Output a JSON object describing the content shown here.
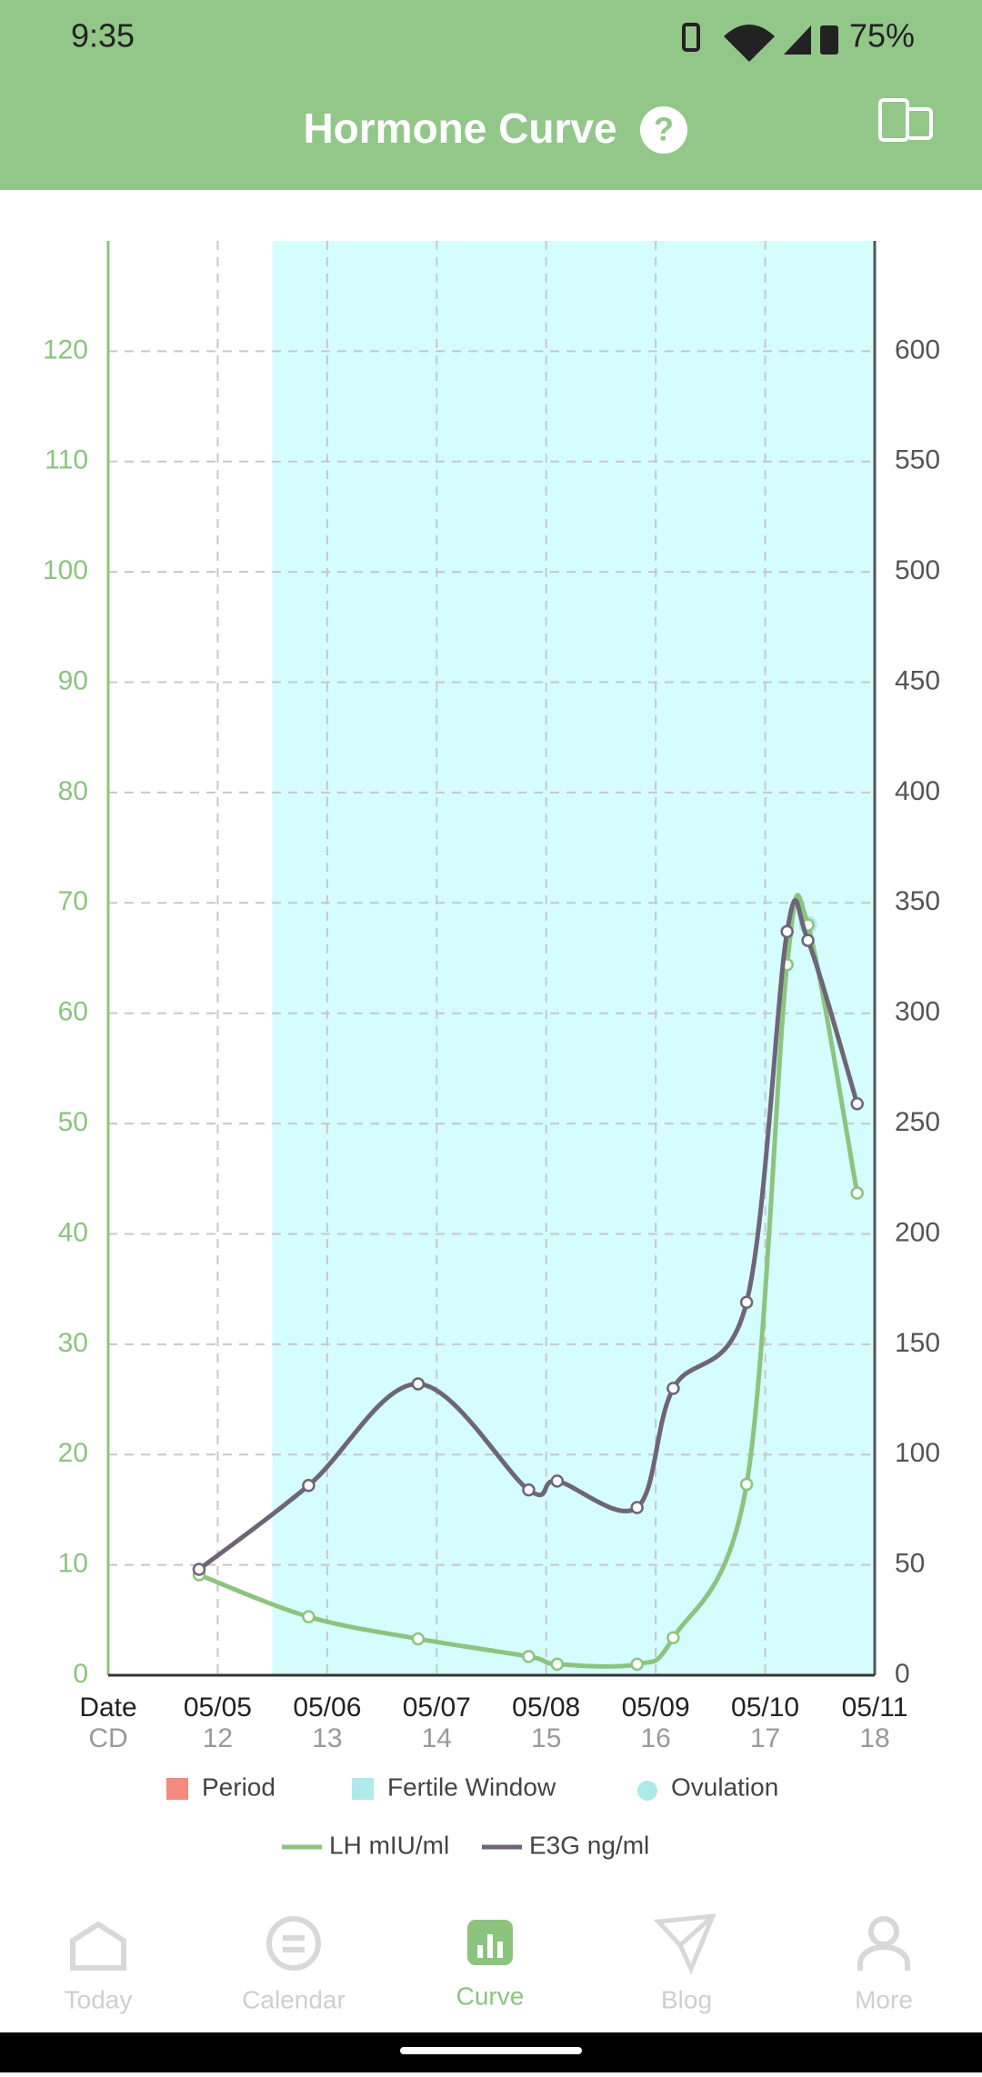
{
  "status_bar": {
    "time": "9:35",
    "battery": "75%"
  },
  "header": {
    "title": "Hormone Curve"
  },
  "chart_data": {
    "type": "line",
    "xlim": [
      -1,
      6
    ],
    "xticks": [
      {
        "value": -1,
        "label": "Date"
      },
      {
        "value": 0,
        "label": "05/05"
      },
      {
        "value": 1,
        "label": "05/06"
      },
      {
        "value": 2,
        "label": "05/07"
      },
      {
        "value": 3,
        "label": "05/08"
      },
      {
        "value": 4,
        "label": "05/09"
      },
      {
        "value": 5,
        "label": "05/10"
      },
      {
        "value": 6,
        "label": "05/11"
      }
    ],
    "cycle_day_labels": [
      "CD",
      "12",
      "13",
      "14",
      "15",
      "16",
      "17",
      "18"
    ],
    "ylim": [
      0,
      130
    ],
    "yticks": [
      0,
      10,
      20,
      30,
      40,
      50,
      60,
      70,
      80,
      90,
      100,
      110,
      120
    ],
    "y2lim": [
      0,
      650
    ],
    "y2ticks": [
      0,
      50,
      100,
      150,
      200,
      250,
      300,
      350,
      400,
      450,
      500,
      550,
      600
    ],
    "grid": true,
    "series": [
      {
        "name": "LH mIU/ml",
        "color": "#8cc47e",
        "x": [
          -0.17,
          0.83,
          1.83,
          2.84,
          3.1,
          3.83,
          4.16,
          4.83,
          5.2,
          5.39,
          5.84
        ],
        "values": [
          9.1,
          5.3,
          3.3,
          1.7,
          1.0,
          1.0,
          3.4,
          17.3,
          64.4,
          68,
          43.7
        ]
      },
      {
        "name": "E3G ng/ml",
        "color": "#6e6577",
        "axis": "y2",
        "x": [
          -0.17,
          0.83,
          1.83,
          2.84,
          3.1,
          3.83,
          4.16,
          4.83,
          5.2,
          5.39,
          5.84
        ],
        "values": [
          48,
          86,
          132,
          84,
          88,
          76,
          130,
          169,
          337,
          333,
          259
        ]
      }
    ],
    "period": {
      "name": "Period",
      "color": "#f28b7d"
    },
    "fertile_window": {
      "name": "Fertile Window",
      "color": "#d5fdfd",
      "legend_color": "#aeeaea",
      "range": [
        0.5,
        6
      ]
    },
    "ovulation": {
      "name": "Ovulation",
      "color": "#aee9ea",
      "x": 5.39,
      "y": 68
    }
  },
  "nav": {
    "items": [
      "Today",
      "Calendar",
      "Curve",
      "Blog",
      "More"
    ],
    "active": 2
  }
}
